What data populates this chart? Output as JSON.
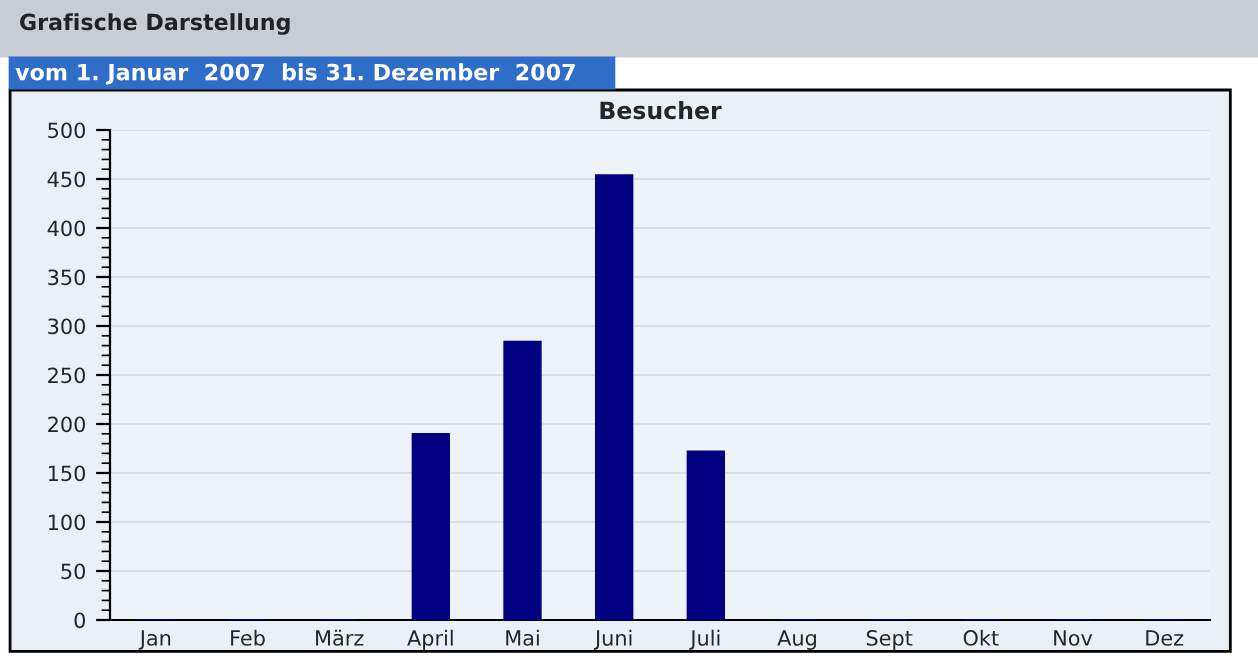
{
  "chart_data": {
    "type": "bar",
    "title": "Besucher",
    "subtitle": "vom 1. Januar  2007  bis 31. Dezember  2007",
    "annotations": [
      "Grafische Darstellung"
    ],
    "categories": [
      "Jan",
      "Feb",
      "März",
      "April",
      "Mai",
      "Juni",
      "Juli",
      "Aug",
      "Sept",
      "Okt",
      "Nov",
      "Dez"
    ],
    "values": [
      0,
      0,
      0,
      190,
      284,
      454,
      172,
      0,
      0,
      0,
      0,
      0
    ],
    "color": "#000080",
    "ylim": [
      0,
      500
    ],
    "yticks": [
      0,
      50,
      100,
      150,
      200,
      250,
      300,
      350,
      400,
      450,
      500
    ],
    "grid": "y",
    "legend": false
  }
}
